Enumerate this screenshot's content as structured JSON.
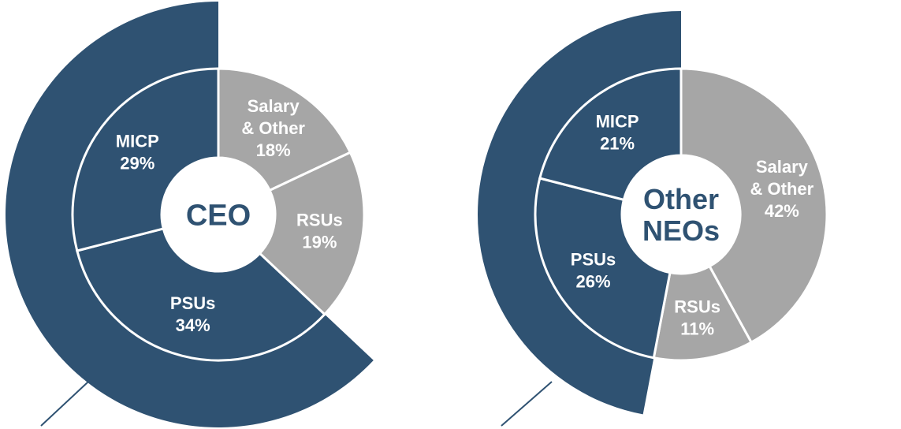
{
  "colors": {
    "dark": "#2f5272",
    "light": "#a6a6a6",
    "label": "#ffffff",
    "center_text": "#2f5272",
    "connector": "#2f5272"
  },
  "chart_data": [
    {
      "type": "pie",
      "center_label": [
        "CEO"
      ],
      "slices": [
        {
          "label": [
            "Salary",
            "& Other"
          ],
          "value": 18,
          "value_label": "18%",
          "color": "#a6a6a6"
        },
        {
          "label": [
            "RSUs"
          ],
          "value": 19,
          "value_label": "19%",
          "color": "#a6a6a6"
        },
        {
          "label": [
            "PSUs"
          ],
          "value": 34,
          "value_label": "34%",
          "color": "#2f5272"
        },
        {
          "label": [
            "MICP"
          ],
          "value": 29,
          "value_label": "29%",
          "color": "#2f5272"
        }
      ],
      "outer_ring_share": 63
    },
    {
      "type": "pie",
      "center_label": [
        "Other",
        "NEOs"
      ],
      "slices": [
        {
          "label": [
            "Salary",
            "& Other"
          ],
          "value": 42,
          "value_label": "42%",
          "color": "#a6a6a6"
        },
        {
          "label": [
            "RSUs"
          ],
          "value": 11,
          "value_label": "11%",
          "color": "#a6a6a6"
        },
        {
          "label": [
            "PSUs"
          ],
          "value": 26,
          "value_label": "26%",
          "color": "#2f5272"
        },
        {
          "label": [
            "MICP"
          ],
          "value": 21,
          "value_label": "21%",
          "color": "#2f5272"
        }
      ],
      "outer_ring_share": 47
    }
  ]
}
